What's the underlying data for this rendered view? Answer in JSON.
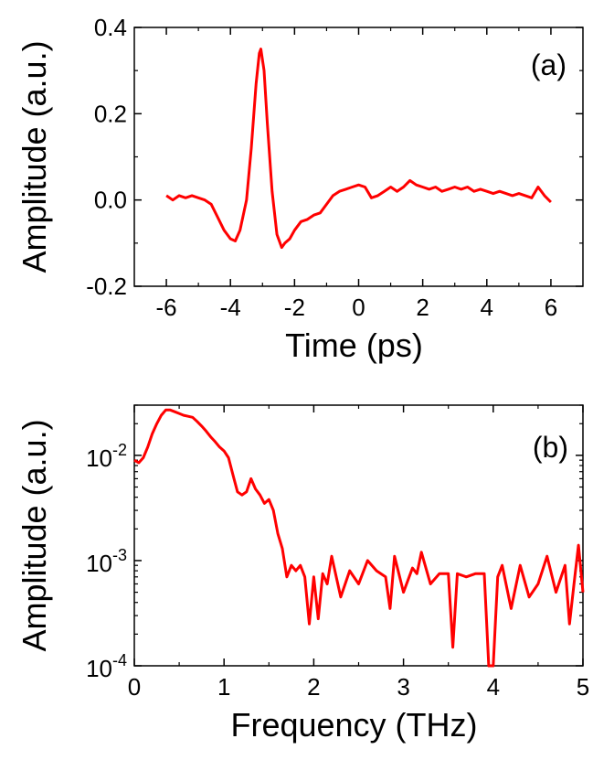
{
  "chart_data": [
    {
      "type": "line",
      "panel_label": "(a)",
      "xlabel": "Time (ps)",
      "ylabel": "Amplitude (a.u.)",
      "xlim": [
        -7,
        7
      ],
      "ylim": [
        -0.2,
        0.4
      ],
      "x_ticks": [
        -6,
        -4,
        -2,
        0,
        2,
        4,
        6
      ],
      "x_tick_labels": [
        "-6",
        "-4",
        "-2",
        "0",
        "2",
        "4",
        "6"
      ],
      "y_ticks": [
        -0.2,
        0.0,
        0.2,
        0.4
      ],
      "y_tick_labels": [
        "-0.2",
        "0.0",
        "0.2",
        "0.4"
      ],
      "grid": false,
      "color": "#ff0000",
      "series": [
        {
          "x": [
            -6.0,
            -5.8,
            -5.6,
            -5.4,
            -5.2,
            -5.0,
            -4.8,
            -4.6,
            -4.4,
            -4.2,
            -4.0,
            -3.85,
            -3.7,
            -3.5,
            -3.35,
            -3.2,
            -3.1,
            -3.05,
            -2.95,
            -2.85,
            -2.7,
            -2.55,
            -2.4,
            -2.3,
            -2.15,
            -2.0,
            -1.8,
            -1.6,
            -1.4,
            -1.2,
            -1.0,
            -0.8,
            -0.6,
            -0.4,
            -0.2,
            0.0,
            0.2,
            0.4,
            0.6,
            0.8,
            1.0,
            1.2,
            1.4,
            1.6,
            1.8,
            2.0,
            2.2,
            2.4,
            2.6,
            2.8,
            3.0,
            3.2,
            3.4,
            3.6,
            3.8,
            4.0,
            4.2,
            4.4,
            4.6,
            4.8,
            5.0,
            5.2,
            5.4,
            5.6,
            5.8,
            6.0
          ],
          "y": [
            0.01,
            0.0,
            0.01,
            0.005,
            0.01,
            0.005,
            0.0,
            -0.01,
            -0.04,
            -0.07,
            -0.09,
            -0.095,
            -0.07,
            0.0,
            0.12,
            0.27,
            0.34,
            0.35,
            0.3,
            0.18,
            0.02,
            -0.08,
            -0.11,
            -0.1,
            -0.09,
            -0.07,
            -0.05,
            -0.045,
            -0.035,
            -0.03,
            -0.01,
            0.01,
            0.02,
            0.025,
            0.03,
            0.035,
            0.03,
            0.005,
            0.01,
            0.02,
            0.03,
            0.02,
            0.03,
            0.045,
            0.035,
            0.03,
            0.025,
            0.03,
            0.02,
            0.025,
            0.03,
            0.025,
            0.03,
            0.02,
            0.025,
            0.02,
            0.015,
            0.02,
            0.015,
            0.01,
            0.015,
            0.01,
            0.005,
            0.03,
            0.01,
            -0.005
          ]
        }
      ]
    },
    {
      "type": "line",
      "panel_label": "(b)",
      "xlabel": "Frequency (THz)",
      "ylabel": "Amplitude (a.u.)",
      "xlim": [
        0,
        5
      ],
      "ylim": [
        0.0001,
        0.03
      ],
      "yscale": "log",
      "x_ticks": [
        0,
        1,
        2,
        3,
        4,
        5
      ],
      "x_tick_labels": [
        "0",
        "1",
        "2",
        "3",
        "4",
        "5"
      ],
      "y_ticks": [
        0.0001,
        0.001,
        0.01
      ],
      "y_tick_labels": [
        {
          "base": "10",
          "exp": "-4"
        },
        {
          "base": "10",
          "exp": "-3"
        },
        {
          "base": "10",
          "exp": "-2"
        }
      ],
      "grid": false,
      "color": "#ff0000",
      "series": [
        {
          "x": [
            0.0,
            0.05,
            0.1,
            0.15,
            0.2,
            0.25,
            0.3,
            0.35,
            0.4,
            0.45,
            0.5,
            0.55,
            0.6,
            0.65,
            0.7,
            0.75,
            0.8,
            0.85,
            0.9,
            0.95,
            1.0,
            1.05,
            1.1,
            1.15,
            1.2,
            1.25,
            1.3,
            1.35,
            1.4,
            1.45,
            1.5,
            1.55,
            1.6,
            1.65,
            1.7,
            1.75,
            1.8,
            1.85,
            1.9,
            1.95,
            2.0,
            2.05,
            2.1,
            2.15,
            2.2,
            2.3,
            2.4,
            2.5,
            2.6,
            2.7,
            2.8,
            2.85,
            2.9,
            3.0,
            3.1,
            3.15,
            3.2,
            3.3,
            3.4,
            3.5,
            3.55,
            3.6,
            3.7,
            3.8,
            3.9,
            3.95,
            4.0,
            4.05,
            4.1,
            4.2,
            4.3,
            4.4,
            4.5,
            4.6,
            4.7,
            4.8,
            4.85,
            4.9,
            4.95,
            5.0
          ],
          "y": [
            0.009,
            0.0085,
            0.0095,
            0.012,
            0.016,
            0.02,
            0.024,
            0.027,
            0.027,
            0.026,
            0.025,
            0.024,
            0.0235,
            0.023,
            0.021,
            0.019,
            0.017,
            0.015,
            0.0135,
            0.012,
            0.011,
            0.0095,
            0.0065,
            0.0045,
            0.0042,
            0.0045,
            0.006,
            0.0048,
            0.0042,
            0.0035,
            0.0038,
            0.003,
            0.0018,
            0.0013,
            0.0007,
            0.0009,
            0.0008,
            0.0009,
            0.0007,
            0.00025,
            0.0007,
            0.00028,
            0.00075,
            0.0006,
            0.0011,
            0.00045,
            0.0008,
            0.0006,
            0.001,
            0.0008,
            0.0007,
            0.00035,
            0.0011,
            0.0005,
            0.00085,
            0.00075,
            0.0012,
            0.0006,
            0.00075,
            0.00075,
            0.00015,
            0.00075,
            0.0007,
            0.00075,
            0.00075,
            0.0001,
            0.0001,
            0.0007,
            0.0009,
            0.00035,
            0.0009,
            0.00045,
            0.0006,
            0.0011,
            0.0005,
            0.0009,
            0.00025,
            0.0006,
            0.0014,
            0.0005
          ]
        }
      ]
    }
  ]
}
